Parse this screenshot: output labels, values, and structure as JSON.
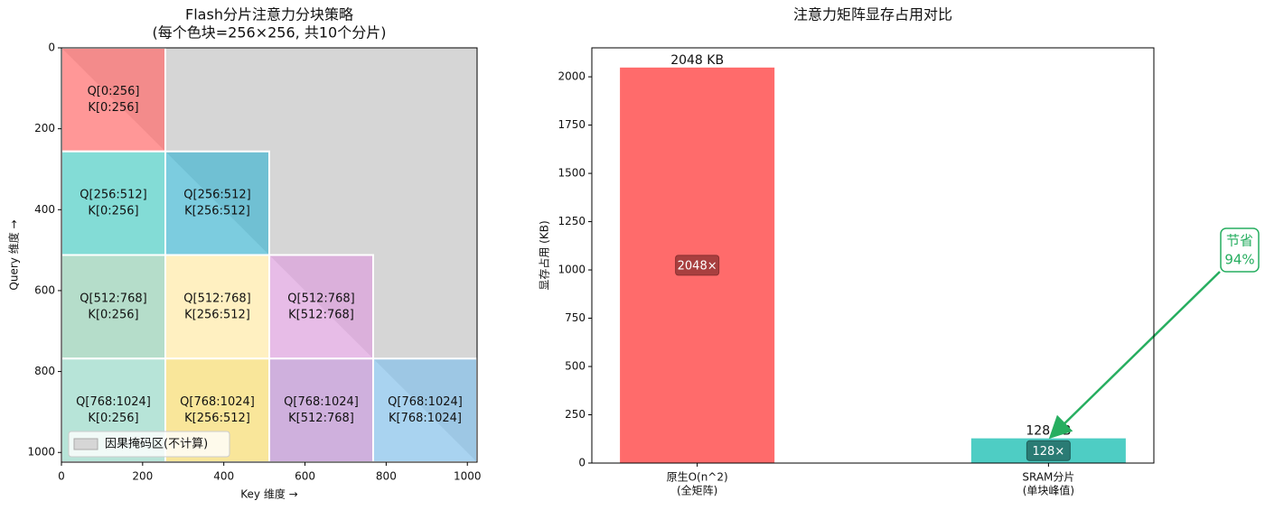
{
  "chart_data": [
    {
      "type": "tiles",
      "title": [
        "Flash分片注意力分块策略",
        "(每个色块=256×256, 共10个分片)"
      ],
      "x_label": "Key 维度 →",
      "y_label": "Query 维度 →",
      "xlim": [
        0,
        1024
      ],
      "ylim": [
        1024,
        0
      ],
      "xticks": [
        0,
        200,
        400,
        600,
        800,
        1000
      ],
      "yticks": [
        0,
        200,
        400,
        600,
        800,
        1000
      ],
      "mask": {
        "label": "因果掩码区(不计算)",
        "color": "#d6d6d6"
      },
      "legend": "lower left",
      "tiles": [
        {
          "label": [
            "Q[0:256]",
            "K[0:256]"
          ],
          "x": [
            0,
            256
          ],
          "y": [
            0,
            256
          ],
          "color": "#FF6B6B"
        },
        {
          "label": [
            "Q[256:512]",
            "K[0:256]"
          ],
          "x": [
            0,
            256
          ],
          "y": [
            256,
            512
          ],
          "color": "#4ECDC4"
        },
        {
          "label": [
            "Q[256:512]",
            "K[256:512]"
          ],
          "x": [
            256,
            512
          ],
          "y": [
            256,
            512
          ],
          "color": "#45B7D1"
        },
        {
          "label": [
            "Q[512:768]",
            "K[0:256]"
          ],
          "x": [
            0,
            256
          ],
          "y": [
            512,
            768
          ],
          "color": "#96CEB4"
        },
        {
          "label": [
            "Q[512:768]",
            "K[256:512]"
          ],
          "x": [
            256,
            512
          ],
          "y": [
            512,
            768
          ],
          "color": "#FFEAA7"
        },
        {
          "label": [
            "Q[512:768]",
            "K[512:768]"
          ],
          "x": [
            512,
            768
          ],
          "y": [
            512,
            768
          ],
          "color": "#DDA0DD"
        },
        {
          "label": [
            "Q[768:1024]",
            "K[0:256]"
          ],
          "x": [
            0,
            256
          ],
          "y": [
            768,
            1024
          ],
          "color": "#98D8C8"
        },
        {
          "label": [
            "Q[768:1024]",
            "K[256:512]"
          ],
          "x": [
            256,
            512
          ],
          "y": [
            768,
            1024
          ],
          "color": "#F7DC6F"
        },
        {
          "label": [
            "Q[768:1024]",
            "K[512:768]"
          ],
          "x": [
            512,
            768
          ],
          "y": [
            768,
            1024
          ],
          "color": "#BB8FCE"
        },
        {
          "label": [
            "Q[768:1024]",
            "K[768:1024]"
          ],
          "x": [
            768,
            1024
          ],
          "y": [
            768,
            1024
          ],
          "color": "#85C1E9"
        }
      ]
    },
    {
      "type": "bar",
      "title": [
        "注意力矩阵显存占用对比"
      ],
      "y_label": "显存占用 (KB)",
      "categories": [
        [
          "原生O(n^2)",
          "(全矩阵)"
        ],
        [
          "SRAM分片",
          "(单块峰值)"
        ]
      ],
      "values": [
        2048,
        128
      ],
      "value_labels": [
        "2048 KB",
        "128 KB"
      ],
      "inner_labels": [
        "2048×",
        "128×"
      ],
      "colors": [
        "#FF6B6B",
        "#4ECDC4"
      ],
      "inner_colors": [
        "#8b3030",
        "#1f5f5a"
      ],
      "ylim": [
        0,
        2150
      ],
      "yticks": [
        0,
        250,
        500,
        750,
        1000,
        1250,
        1500,
        1750,
        2000
      ],
      "annotation": {
        "text": [
          "节省",
          "94%"
        ],
        "color": "#27ae60",
        "target": 1
      }
    }
  ]
}
